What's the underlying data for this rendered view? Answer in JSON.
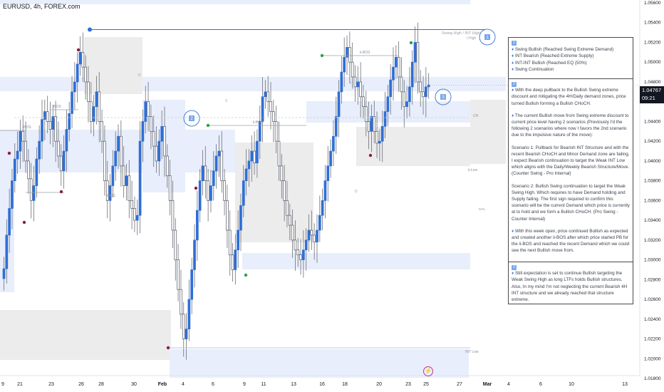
{
  "header": {
    "title": "EURUSD, 4h, FOREX.com"
  },
  "colors": {
    "bull": "#2f6fd6",
    "bear": "#555a66",
    "wick": "#6b6f78",
    "zone_blue": "#e8eefb",
    "zone_gray": "#ececec",
    "line": "#2f6fd6",
    "bos": "#9aa0aa",
    "bg": "#ffffff",
    "pt_green": "#2e9e4e",
    "pt_red": "#8a1f3a"
  },
  "price_axis": {
    "labels": [
      "1.05600",
      "1.05400",
      "1.05200",
      "1.05000",
      "1.04800",
      "1.04600",
      "1.04400",
      "1.04200",
      "1.04000",
      "1.03800",
      "1.03600",
      "1.03400",
      "1.03200",
      "1.03000",
      "1.02800",
      "1.02600",
      "1.02400",
      "1.02200",
      "1.02000",
      "1.01800"
    ],
    "current_price": "1.04767",
    "countdown": "09:21"
  },
  "time_axis": {
    "labels": [
      "9",
      "21",
      "23",
      "26",
      "28",
      "30",
      "Feb",
      "4",
      "6",
      "9",
      "11",
      "13",
      "16",
      "18",
      "20",
      "23",
      "25",
      "27",
      "Mar",
      "4",
      "6",
      "10",
      "13"
    ]
  },
  "annotations": {
    "swing_high": "Swing High / INT High",
    "swing_high_sub": "I-High",
    "ibos_1": "iBOS",
    "ibos_2": "iBOS",
    "ibos_3": "iBOS",
    "ii_bos_top": "ii-BOS",
    "ii_bos_mid": "ii-BOS",
    "ch": "CH",
    "ii_low": "ii-Low",
    "int_low": "INT Low",
    "x1": "X",
    "x2": "X",
    "d1": "D",
    "d2": "D",
    "pct": "50%",
    "circle_1": "1",
    "circle_2": "2",
    "circle_3": "3"
  },
  "panel": {
    "s1_badge": "1",
    "s1_items": [
      "Swing Bullish (Reached Swing Extreme Demand)",
      "INT Bearish (Reached Extreme Supply)",
      "INT-INT Bullish (Reached EQ (50%)",
      "Swing Continuation"
    ],
    "s2_badge": "2",
    "s2_p1": "With the deep pullback to the Bullish Swing extreme discount and mitigating the 4H/Daily demand zones, price turned Bullish forming a Bullish CHoCH.",
    "s2_p2": "The current Bullish move from Swing extreme discount to current price level having 2 scenarios (Previously I'd the following 2 scenarios where now I favors the 2nd scenario due to the impulsive nature of the move):",
    "s2_p3": "Scenario 1: Pullback for Bearish INT Structure and with the recent Bearish CHoCH and Minor Demand zone are failing, I expect Bearish continuation to target the Weak INT Low which aligns with the Daily/Weekly Bearish Structure/Move. (Counter Swing - Pro Internal)",
    "s2_p4": "Scenario 2: Bullish Swing continuation to target the Weak Swing High. Which requires to have Demand holding and Supply failing. The first sign required to confirm this scenario will be the current Demand which price is currently at to hold and we form a Bullish CHoCH. (Pro Swing - Counter Internal)",
    "s2_p5": "With this week open, price continued Bullish as expected and created another ii-BOS after which price started PB for the ii-BOS and reached the recent Demand which we could see the next Bullish move from.",
    "s3_badge": "3",
    "s3_p1": "Still expectation is set to continue Bullish targeting the Weak Swing High as long LTFs holds Bullish structures. Also, In my mind I'm not neglecting the current Bearish 4H INT structure and we already reached that structure extreme."
  },
  "chart_data": {
    "type": "candlestick",
    "title": "EURUSD, 4h, FOREX.com",
    "ylim": [
      1.018,
      1.056
    ],
    "y_ticks": [
      1.056,
      1.054,
      1.052,
      1.05,
      1.048,
      1.046,
      1.044,
      1.042,
      1.04,
      1.038,
      1.036,
      1.034,
      1.032,
      1.03,
      1.028,
      1.026,
      1.024,
      1.022,
      1.02,
      1.018
    ],
    "key_levels": {
      "swing_high": 1.0533,
      "int_low": 1.0211,
      "current_price": 1.04767
    },
    "candles_close_approx": [
      1.0291,
      1.0325,
      1.0352,
      1.038,
      1.0402,
      1.041,
      1.043,
      1.042,
      1.04,
      1.0382,
      1.036,
      1.0375,
      1.0402,
      1.042,
      1.0442,
      1.045,
      1.044,
      1.0432,
      1.0445,
      1.042,
      1.0405,
      1.039,
      1.041,
      1.0432,
      1.0448,
      1.047,
      1.048,
      1.0498,
      1.051,
      1.0495,
      1.048,
      1.046,
      1.044,
      1.0455,
      1.047,
      1.044,
      1.042,
      1.038,
      1.036,
      1.0375,
      1.0395,
      1.041,
      1.0425,
      1.0395,
      1.0375,
      1.0385,
      1.036,
      1.0352,
      1.034,
      1.0345,
      1.042,
      1.044,
      1.046,
      1.0445,
      1.043,
      1.0415,
      1.04,
      1.042,
      1.0435,
      1.0405,
      1.0385,
      1.036,
      1.033,
      1.03,
      1.027,
      1.0245,
      1.022,
      1.023,
      1.026,
      1.029,
      1.032,
      1.035,
      1.038,
      1.0395,
      1.038,
      1.036,
      1.0375,
      1.039,
      1.0405,
      1.041,
      1.038,
      1.036,
      1.033,
      1.0305,
      1.029,
      1.031,
      1.033,
      1.0355,
      1.038,
      1.0392,
      1.04,
      1.041,
      1.0398,
      1.042,
      1.044,
      1.0465,
      1.047,
      1.046,
      1.045,
      1.044,
      1.042,
      1.0395,
      1.038,
      1.036,
      1.0345,
      1.0335,
      1.032,
      1.031,
      1.0305,
      1.03,
      1.031,
      1.032,
      1.033,
      1.0325,
      1.0318,
      1.033,
      1.0345,
      1.036,
      1.038,
      1.0395,
      1.041,
      1.0425,
      1.0445,
      1.047,
      1.049,
      1.0505,
      1.0515,
      1.05,
      1.0485,
      1.0475,
      1.048,
      1.0465,
      1.0455,
      1.044,
      1.043,
      1.0445,
      1.043,
      1.0418,
      1.042,
      1.0435,
      1.045,
      1.0465,
      1.0482,
      1.0495,
      1.0505,
      1.0485,
      1.047,
      1.0455,
      1.046,
      1.0475,
      1.05,
      1.052,
      1.048,
      1.047,
      1.0465,
      1.0475,
      1.0477
    ]
  }
}
